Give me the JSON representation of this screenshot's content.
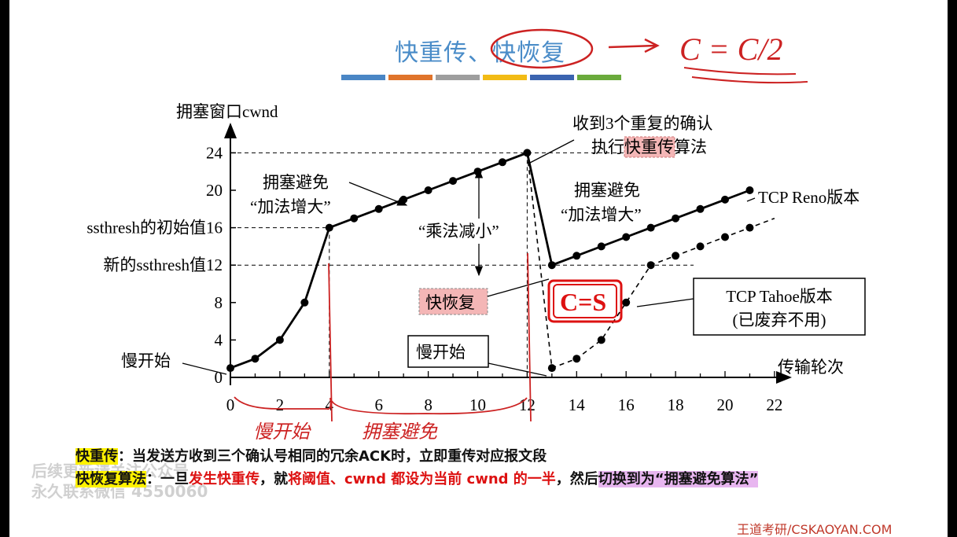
{
  "header": {
    "title_part1": "快重传、",
    "title_part2": "快恢复",
    "handwritten_formula": "C = C/2",
    "accent_colors": [
      "#4a86c5",
      "#e0742b",
      "#9e9e9e",
      "#f2bb15",
      "#3b64b0",
      "#6aaa3c"
    ]
  },
  "chart_data": {
    "type": "line",
    "ylabel": "拥塞窗口cwnd",
    "xlabel": "传输轮次",
    "xlim": [
      0,
      22
    ],
    "ylim": [
      0,
      24
    ],
    "x_ticks": [
      0,
      2,
      4,
      6,
      8,
      10,
      12,
      14,
      16,
      18,
      20,
      22
    ],
    "y_ticks": [
      0,
      4,
      8,
      12,
      16,
      20,
      24
    ],
    "y_special_labels": [
      {
        "y": 16,
        "label": "ssthresh的初始值16"
      },
      {
        "y": 12,
        "label": "新的ssthresh值12"
      }
    ],
    "series": [
      {
        "name": "TCP Reno版本",
        "style": "solid",
        "points": [
          [
            0,
            1
          ],
          [
            1,
            2
          ],
          [
            2,
            4
          ],
          [
            3,
            8
          ],
          [
            4,
            16
          ],
          [
            5,
            17
          ],
          [
            6,
            18
          ],
          [
            7,
            19
          ],
          [
            8,
            20
          ],
          [
            9,
            21
          ],
          [
            10,
            22
          ],
          [
            11,
            23
          ],
          [
            12,
            24
          ],
          [
            13,
            12
          ],
          [
            14,
            13
          ],
          [
            15,
            14
          ],
          [
            16,
            15
          ],
          [
            17,
            16
          ],
          [
            18,
            17
          ],
          [
            19,
            18
          ],
          [
            20,
            19
          ],
          [
            21,
            20
          ]
        ]
      },
      {
        "name": "TCP Tahoe版本",
        "style": "dashed",
        "points": [
          [
            12,
            24
          ],
          [
            13,
            1
          ],
          [
            14,
            2
          ],
          [
            15,
            4
          ],
          [
            16,
            8
          ],
          [
            17,
            12
          ],
          [
            18,
            13
          ],
          [
            19,
            14
          ],
          [
            20,
            15
          ],
          [
            21,
            16
          ],
          [
            22,
            17
          ]
        ],
        "marker_xs": [
          13,
          14,
          15,
          16,
          17,
          18,
          19,
          20,
          21
        ]
      }
    ],
    "annotations": {
      "slow_start_left": "慢开始",
      "cong_avoid_1_line1": "拥塞避免",
      "cong_avoid_1_line2": "“加法增大”",
      "mult_decrease": "“乘法减小”",
      "got_3_dup_line1": "收到3个重复的确认",
      "got_3_dup_line2_pre": "执行",
      "got_3_dup_line2_hl": "快重传",
      "got_3_dup_line2_post": "算法",
      "cong_avoid_2_line1": "拥塞避免",
      "cong_avoid_2_line2": "“加法增大”",
      "reno_label": "TCP Reno版本",
      "fast_recovery": "快恢复",
      "slow_start_box": "慢开始",
      "tahoe_box_line1": "TCP Tahoe版本",
      "tahoe_box_line2": "(已废弃不用)"
    },
    "handwritten": {
      "cs": "C=S",
      "slow_start": "慢开始",
      "cong_avoid": "拥塞避免"
    }
  },
  "notes": {
    "line1_label": "快重传",
    "line1_text": "：当发送方收到三个确认号相同的冗余ACK时，立即重传对应报文段",
    "line2_label": "快恢复算法",
    "line2_text1": "：一旦",
    "line2_red1": "发生快重传",
    "line2_text2": "，就",
    "line2_red2": "将阈值、cwnd 都设为当前 cwnd 的一半",
    "line2_text3": "，然后",
    "line2_hl": "切换到为“拥塞避免算法”"
  },
  "footer": {
    "brand": "王道考研/CSKAOYAN.COM"
  }
}
